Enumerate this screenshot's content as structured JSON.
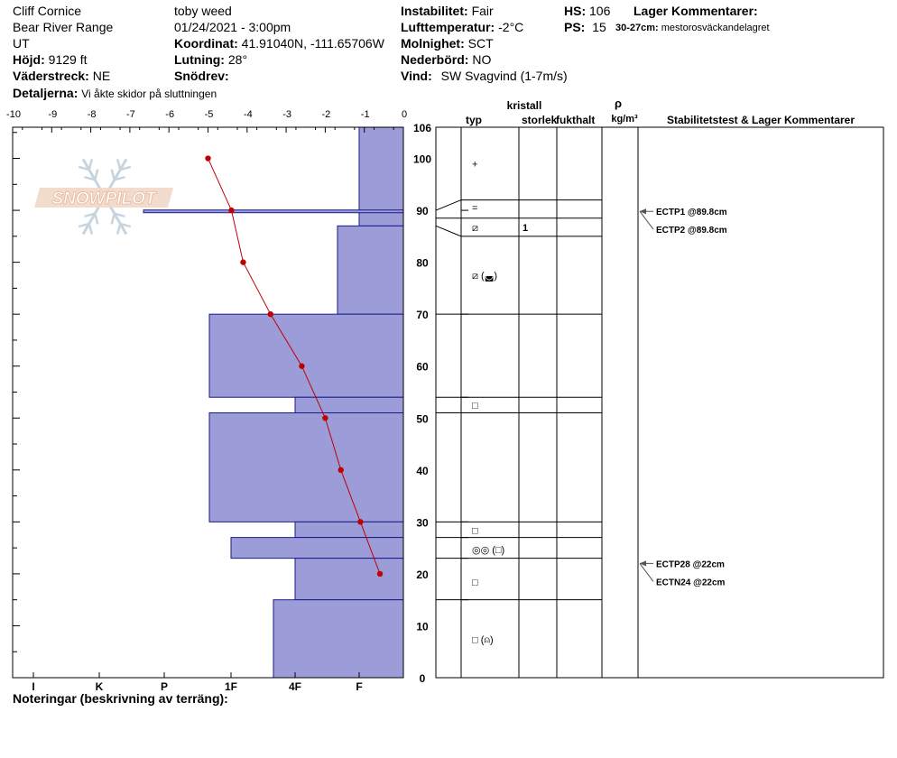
{
  "header": {
    "observer": "Cliff Cornice",
    "location": "Bear River Range",
    "state": "UT",
    "elevation_label": "Höjd:",
    "elevation": "9129 ft",
    "aspect_label": "Väderstreck:",
    "aspect": "NE",
    "details_label": "Detaljerna:",
    "details": "Vi åkte skidor på sluttningen",
    "user": "toby weed",
    "datetime": "01/24/2021 - 3:00pm",
    "coord_label": "Koordinat:",
    "coord": "41.91040N, -111.65706W",
    "slope_label": "Lutning:",
    "slope": "28°",
    "drift_label": "Snödrev:",
    "drift": "",
    "instability_label": "Instabilitet:",
    "instability": "Fair",
    "airtemp_label": "Lufttemperatur:",
    "airtemp": "-2°C",
    "sky_label": "Molnighet:",
    "sky": "SCT",
    "precip_label": "Nederbörd:",
    "precip": "NO",
    "wind_label": "Vind:",
    "wind": "SW Svagvind (1-7m/s)",
    "hs_label": "HS:",
    "hs": "106",
    "ps_label": "PS:",
    "ps": "15",
    "layer_comments_label": "Lager Kommentarer:",
    "layer_comment_range": "30-27cm:",
    "layer_comment_text": "mestorosväckandelagret",
    "notes_label": "Noteringar (beskrivning av terräng):",
    "logo": "SNOWPILOT"
  },
  "columns": {
    "kristall": "kristall",
    "typ": "typ",
    "storlek": "storlek",
    "fukthalt": "fukthalt",
    "rho": "ρ",
    "density_unit": "kg/m³",
    "stability": "Stabilitetstest & Lager Kommentarer"
  },
  "colors": {
    "hardness_fill": "#9c9cd8",
    "hardness_stroke": "#1a1a8c",
    "temp": "#c00000"
  },
  "chart_data": {
    "type": "snow-profile",
    "temperature_axis": {
      "ticks": [
        -10,
        -9,
        -8,
        -7,
        -6,
        -5,
        -4,
        -3,
        -2,
        -1,
        0
      ],
      "labels": [
        "-10",
        "-9",
        "-8",
        "-7",
        "-6",
        "-5",
        "-4",
        "-3",
        "-2",
        "-1",
        "0"
      ],
      "range": [
        -10,
        0
      ]
    },
    "hardness_axis": {
      "labels": [
        "I",
        "K",
        "P",
        "1F",
        "4F",
        "F"
      ]
    },
    "height_axis": {
      "range": [
        0,
        106
      ],
      "labels": [
        0,
        10,
        20,
        30,
        40,
        50,
        60,
        70,
        80,
        90,
        100,
        106
      ]
    },
    "hardness_layers": [
      {
        "top": 106,
        "bottom": 87,
        "hardness": "F"
      },
      {
        "top": 87,
        "bottom": 70,
        "hardness": "F+"
      },
      {
        "top": 70,
        "bottom": 54,
        "hardness": "1F+"
      },
      {
        "top": 54,
        "bottom": 51,
        "hardness": "4F"
      },
      {
        "top": 51,
        "bottom": 30,
        "hardness": "1F+"
      },
      {
        "top": 30,
        "bottom": 27,
        "hardness": "4F"
      },
      {
        "top": 27,
        "bottom": 23,
        "hardness": "1F"
      },
      {
        "top": 23,
        "bottom": 15,
        "hardness": "4F"
      },
      {
        "top": 15,
        "bottom": 0,
        "hardness": "4F+"
      }
    ],
    "thin_layer": {
      "height": 89.8
    },
    "temperature_profile": [
      {
        "height": 100,
        "temp": -5.0
      },
      {
        "height": 90,
        "temp": -4.4
      },
      {
        "height": 80,
        "temp": -4.1
      },
      {
        "height": 70,
        "temp": -3.4
      },
      {
        "height": 60,
        "temp": -2.6
      },
      {
        "height": 50,
        "temp": -2.0
      },
      {
        "height": 40,
        "temp": -1.6
      },
      {
        "height": 30,
        "temp": -1.1
      },
      {
        "height": 20,
        "temp": -0.6
      }
    ],
    "layer_boundaries": [
      106,
      92,
      88.5,
      85,
      70,
      54,
      51,
      30,
      27,
      23,
      15,
      0
    ],
    "grain_labels": [
      {
        "height": 99,
        "symbol": "+"
      },
      {
        "height": 90.5,
        "symbol": "="
      },
      {
        "height": 86.7,
        "symbol": "⧄",
        "size": "1"
      },
      {
        "height": 77.5,
        "symbol": "⧄ (◛)"
      },
      {
        "height": 52.5,
        "symbol": "□"
      },
      {
        "height": 28.4,
        "symbol": "□"
      },
      {
        "height": 24.7,
        "symbol": "◎◎ (□)"
      },
      {
        "height": 18.4,
        "symbol": "□"
      },
      {
        "height": 7.4,
        "symbol": "□ (⍝)"
      }
    ],
    "stability_tests": [
      {
        "label": "ECTP1 @89.8cm",
        "height": 89.8
      },
      {
        "label": "ECTP2 @89.8cm",
        "height": 89.8
      },
      {
        "label": "ECTP28 @22cm",
        "height": 22
      },
      {
        "label": "ECTN24 @22cm",
        "height": 22
      }
    ]
  }
}
